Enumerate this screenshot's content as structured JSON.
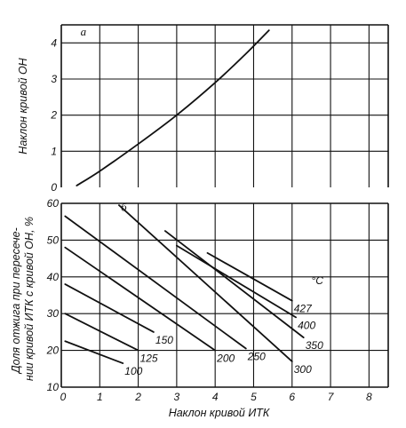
{
  "chart_data": [
    {
      "type": "line",
      "panel_label": "а",
      "xlabel": "",
      "ylabel": "Наклон кривой ОН",
      "xlim": [
        0,
        8.5
      ],
      "ylim": [
        0,
        4.5
      ],
      "x_ticks": [],
      "y_ticks": [
        "0",
        "1",
        "2",
        "3",
        "4"
      ],
      "grid": true,
      "series": [
        {
          "points": [
            [
              0.4,
              0.05
            ],
            [
              1.0,
              0.45
            ],
            [
              2.0,
              1.2
            ],
            [
              3.0,
              2.0
            ],
            [
              4.0,
              2.9
            ],
            [
              4.8,
              3.7
            ],
            [
              5.4,
              4.35
            ]
          ]
        }
      ]
    },
    {
      "type": "line",
      "panel_label": "б",
      "xlabel": "Наклон кривой ИТК",
      "ylabel": "Доля отжига при пересечении кривой ИТК с кривой ОН, %",
      "ylabel_lines": [
        "Доля отжига при пересече-",
        "нии кривой ИТК с кривой ОН, %"
      ],
      "xlim": [
        0,
        8.5
      ],
      "ylim": [
        10,
        60
      ],
      "x_ticks": [
        "0",
        "1",
        "2",
        "3",
        "4",
        "5",
        "6",
        "7",
        "8"
      ],
      "y_ticks": [
        "10",
        "20",
        "30",
        "40",
        "50",
        "60"
      ],
      "grid": true,
      "unit_label": "°С",
      "series": [
        {
          "name": "100",
          "points": [
            [
              0.1,
              22.5
            ],
            [
              1.6,
              16.5
            ]
          ]
        },
        {
          "name": "125",
          "points": [
            [
              0.1,
              30
            ],
            [
              2.0,
              20
            ]
          ]
        },
        {
          "name": "150",
          "points": [
            [
              0.1,
              38
            ],
            [
              2.4,
              25
            ]
          ]
        },
        {
          "name": "200",
          "points": [
            [
              0.1,
              48
            ],
            [
              4.0,
              20
            ]
          ]
        },
        {
          "name": "250",
          "points": [
            [
              0.1,
              56.5
            ],
            [
              4.8,
              20.5
            ]
          ]
        },
        {
          "name": "300",
          "points": [
            [
              1.5,
              59.5
            ],
            [
              6.0,
              17
            ]
          ]
        },
        {
          "name": "350",
          "points": [
            [
              2.7,
              52.5
            ],
            [
              6.3,
              23.5
            ]
          ]
        },
        {
          "name": "400",
          "points": [
            [
              3.0,
              48.5
            ],
            [
              6.1,
              29
            ]
          ]
        },
        {
          "name": "427",
          "points": [
            [
              3.8,
              46.5
            ],
            [
              6.0,
              33.5
            ]
          ]
        }
      ]
    }
  ]
}
